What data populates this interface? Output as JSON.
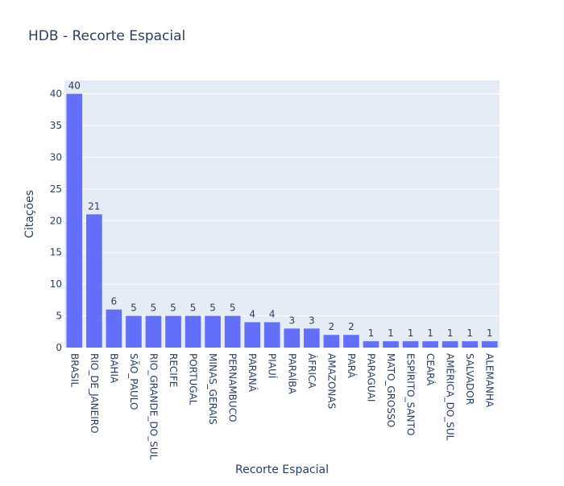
{
  "chart_data": {
    "type": "bar",
    "title": "HDB - Recorte Espacial",
    "xlabel": "Recorte Espacial",
    "ylabel": "Citações",
    "ylim": [
      0,
      42.1
    ],
    "yticks": [
      0,
      5,
      10,
      15,
      20,
      25,
      30,
      35,
      40
    ],
    "grid": true,
    "categories": [
      "BRASIL",
      "RIO_DE_JANEIRO",
      "BAHIA",
      "SÃO_PAULO",
      "RIO_GRANDE_DO_SUL",
      "RECIFE",
      "PORTUGAL",
      "MINAS_GERAIS",
      "PERNAMBUCO",
      "PARANÁ",
      "PIAUÍ",
      "PARAÍBA",
      "ÁFRICA",
      "AMAZONAS",
      "PARÁ",
      "PARAGUAI",
      "MATO_GROSSO",
      "ESPÍRITO_SANTO",
      "CEARÁ",
      "AMÉRICA_DO_SUL",
      "SALVADOR",
      "ALEMANHA"
    ],
    "values": [
      40,
      21,
      6,
      5,
      5,
      5,
      5,
      5,
      5,
      4,
      4,
      3,
      3,
      2,
      2,
      1,
      1,
      1,
      1,
      1,
      1,
      1
    ],
    "bar_color": "#636efa",
    "plot_bg": "#e5ecf6"
  }
}
